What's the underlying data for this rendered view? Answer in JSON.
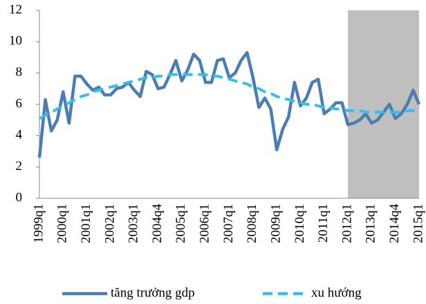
{
  "chart_data": {
    "type": "line",
    "categories": [
      "1999q1",
      null,
      null,
      null,
      "2000q1",
      null,
      null,
      null,
      "2001q1",
      null,
      null,
      null,
      "2002q1",
      null,
      null,
      null,
      "2003q1",
      null,
      null,
      null,
      "2004q4",
      null,
      null,
      null,
      "2005q1",
      null,
      null,
      null,
      "2006q1",
      null,
      null,
      null,
      "2007q1",
      null,
      null,
      null,
      "2008q1",
      null,
      null,
      null,
      "2009q1",
      null,
      null,
      null,
      "2010q1",
      null,
      null,
      null,
      "2011q1",
      null,
      null,
      null,
      "2012q1",
      null,
      null,
      null,
      "2013q1",
      null,
      null,
      null,
      "2014q4",
      null,
      null,
      null,
      "2015q1"
    ],
    "series": [
      {
        "name": "tăng trưởng gdp",
        "color": "#4a7db3",
        "dash": false,
        "values": [
          2.6,
          6.3,
          4.3,
          5.0,
          6.8,
          4.8,
          7.8,
          7.8,
          7.3,
          6.9,
          7.1,
          6.6,
          6.6,
          7.0,
          7.1,
          7.4,
          6.9,
          6.5,
          8.1,
          7.9,
          7.0,
          7.1,
          7.9,
          8.8,
          7.5,
          8.2,
          9.2,
          8.8,
          7.4,
          7.4,
          8.8,
          8.9,
          7.7,
          8.0,
          8.8,
          9.3,
          7.7,
          5.8,
          6.4,
          5.7,
          3.1,
          4.4,
          5.2,
          7.4,
          5.9,
          6.4,
          7.4,
          7.6,
          5.4,
          5.7,
          6.1,
          6.1,
          4.7,
          4.8,
          5.0,
          5.4,
          4.8,
          5.0,
          5.5,
          6.0,
          5.1,
          5.4,
          6.0,
          6.9,
          6.0
        ]
      },
      {
        "name": "xu hướng",
        "color": "#33bff0",
        "dash": true,
        "values": [
          5.1,
          5.3,
          5.5,
          5.7,
          5.9,
          6.1,
          6.3,
          6.5,
          6.6,
          6.8,
          6.9,
          7.0,
          7.1,
          7.2,
          7.3,
          7.4,
          7.5,
          7.6,
          7.7,
          7.7,
          7.8,
          7.8,
          7.9,
          7.9,
          7.9,
          7.9,
          7.9,
          7.9,
          7.9,
          7.8,
          7.8,
          7.7,
          7.6,
          7.5,
          7.4,
          7.3,
          7.1,
          7.0,
          6.8,
          6.7,
          6.5,
          6.4,
          6.3,
          6.2,
          6.1,
          6.0,
          6.0,
          5.9,
          5.8,
          5.8,
          5.7,
          5.7,
          5.6,
          5.6,
          5.6,
          5.5,
          5.5,
          5.5,
          5.5,
          5.5,
          5.5,
          5.5,
          5.6,
          5.6,
          5.6
        ]
      }
    ],
    "shade": {
      "from": "2012q1",
      "to": "2015q1",
      "color": "#bfbfbf"
    },
    "ylim": [
      0,
      12
    ],
    "yticks": [
      0,
      2,
      4,
      6,
      8,
      10,
      12
    ],
    "grid": false,
    "legend": "bottom"
  }
}
